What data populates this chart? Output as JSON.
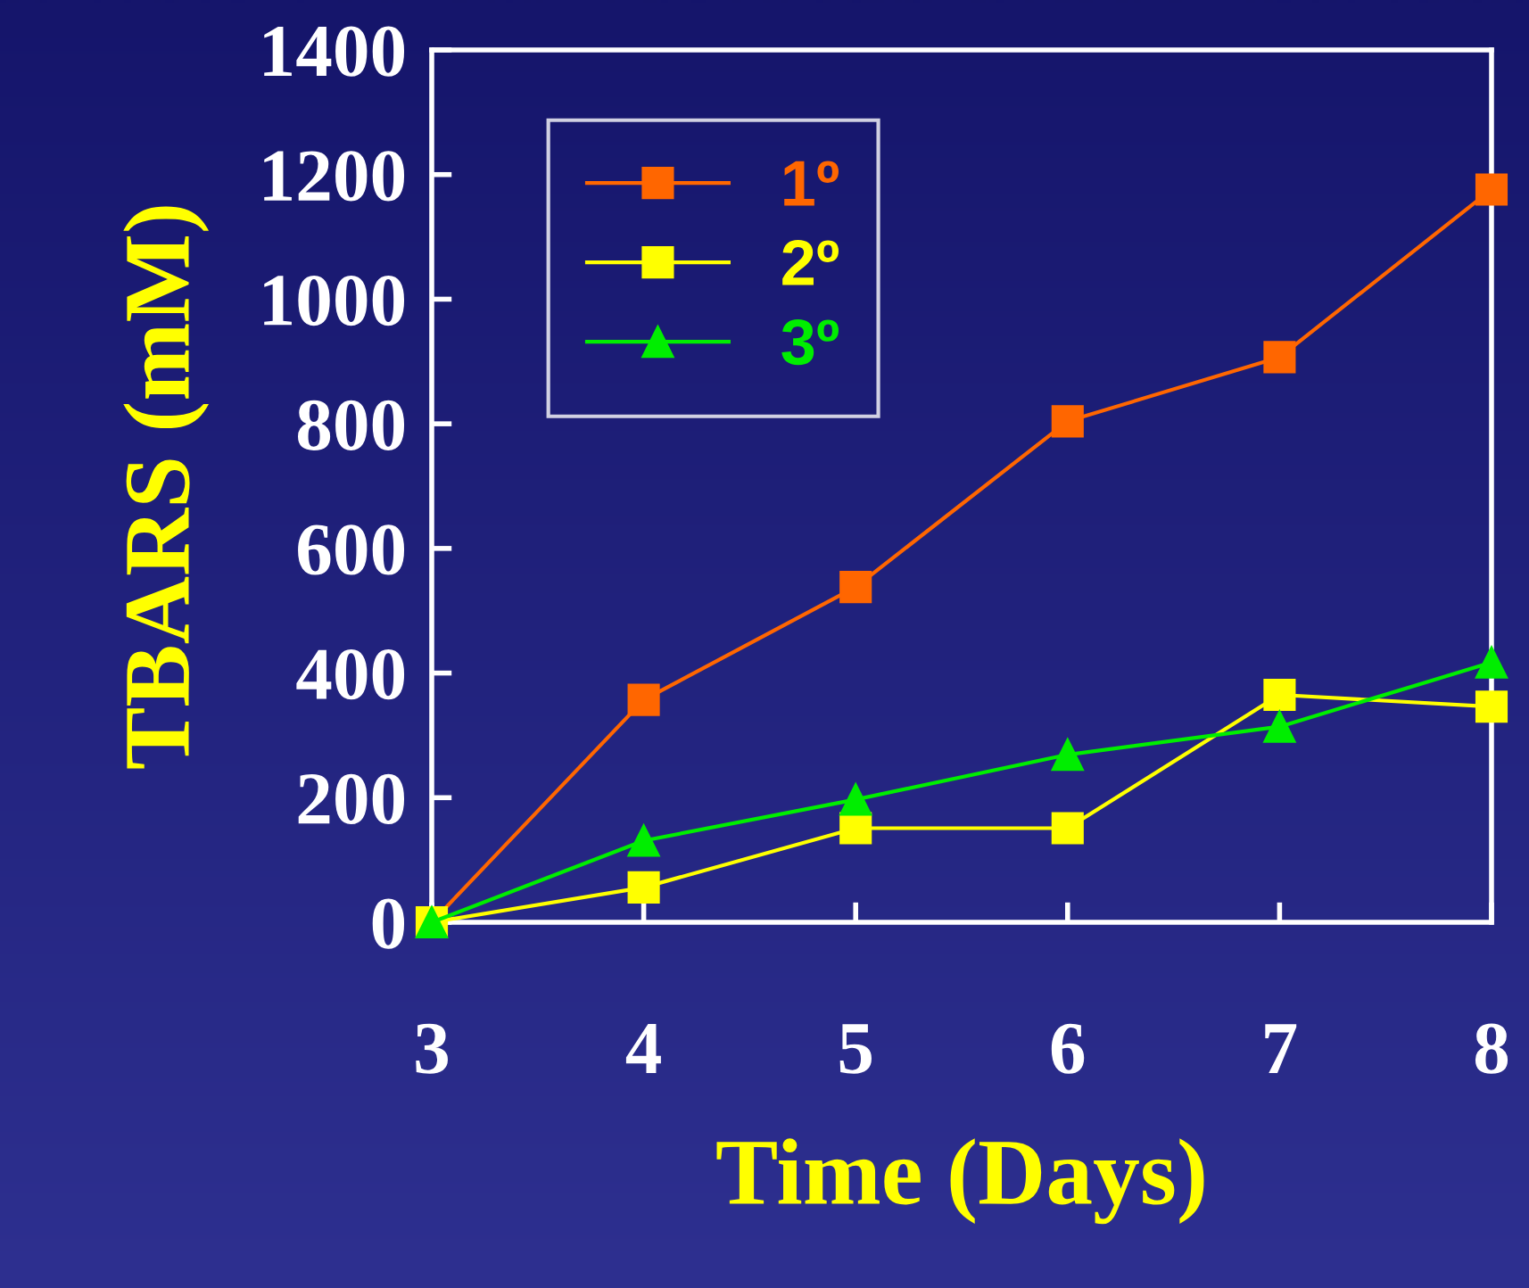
{
  "chart_data": {
    "type": "line",
    "xlabel": "Time (Days)",
    "ylabel": "TBARS (mM)",
    "x": [
      3,
      4,
      5,
      6,
      7,
      8
    ],
    "xlim": [
      3,
      8
    ],
    "xticks": [
      3,
      4,
      5,
      6,
      7,
      8
    ],
    "ylim": [
      0,
      1400
    ],
    "yticks": [
      0,
      200,
      400,
      600,
      800,
      1000,
      1200,
      1400
    ],
    "grid": false,
    "legend": "top left",
    "series": [
      {
        "name": "1º",
        "color": "#ff6600",
        "marker": "square",
        "values": [
          0,
          357,
          538,
          804,
          907,
          1176
        ]
      },
      {
        "name": "2º",
        "color": "#ffff00",
        "marker": "square",
        "values": [
          0,
          56,
          151,
          151,
          365,
          346
        ]
      },
      {
        "name": "3º",
        "color": "#00ee00",
        "marker": "triangle",
        "values": [
          0,
          131,
          197,
          269,
          314,
          417
        ]
      }
    ]
  }
}
